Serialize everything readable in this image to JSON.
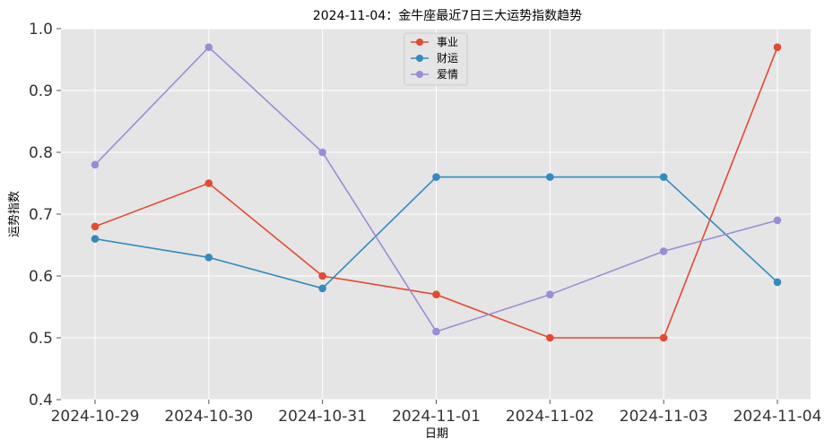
{
  "chart_data": {
    "type": "line",
    "title": "2024-11-04：金牛座最近7日三大运势指数趋势",
    "xlabel": "日期",
    "ylabel": "运势指数",
    "categories": [
      "2024-10-29",
      "2024-10-30",
      "2024-10-31",
      "2024-11-01",
      "2024-11-02",
      "2024-11-03",
      "2024-11-04"
    ],
    "ylim": [
      0.4,
      1.0
    ],
    "yticks": [
      "0.4",
      "0.5",
      "0.6",
      "0.7",
      "0.8",
      "0.9",
      "1.0"
    ],
    "grid": true,
    "legend_position": "top-center",
    "series": [
      {
        "name": "事业",
        "color": "#E24A33",
        "values": [
          0.68,
          0.75,
          0.6,
          0.57,
          0.5,
          0.5,
          0.97
        ]
      },
      {
        "name": "财运",
        "color": "#348ABD",
        "values": [
          0.66,
          0.63,
          0.58,
          0.76,
          0.76,
          0.76,
          0.59
        ]
      },
      {
        "name": "爱情",
        "color": "#988ED5",
        "values": [
          0.78,
          0.97,
          0.8,
          0.51,
          0.57,
          0.64,
          0.69
        ]
      }
    ]
  }
}
